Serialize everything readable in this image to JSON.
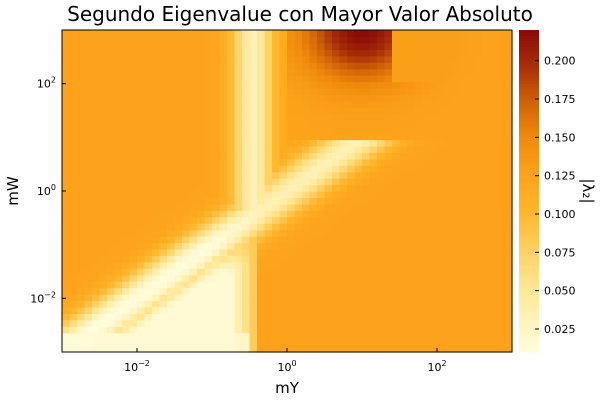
{
  "chart_data": {
    "type": "heatmap",
    "title": "Segundo Eigenvalue con Mayor Valor Absoluto",
    "xlabel": "mY",
    "ylabel": "mW",
    "colorbar_label": "|λ₂|",
    "x_scale": "log",
    "y_scale": "log",
    "xlim": [
      0.001,
      1000
    ],
    "ylim": [
      0.001,
      1000
    ],
    "x_ticks": [
      {
        "value": 0.01,
        "base": "10",
        "exp": "−2"
      },
      {
        "value": 1,
        "base": "10",
        "exp": "0"
      },
      {
        "value": 100,
        "base": "10",
        "exp": "2"
      }
    ],
    "y_ticks": [
      {
        "value": 0.01,
        "base": "10",
        "exp": "−2"
      },
      {
        "value": 1,
        "base": "10",
        "exp": "0"
      },
      {
        "value": 100,
        "base": "10",
        "exp": "2"
      }
    ],
    "color_range": [
      0.01,
      0.22
    ],
    "colorbar_ticks": [
      "0.025",
      "0.050",
      "0.075",
      "0.100",
      "0.125",
      "0.150",
      "0.175",
      "0.200"
    ],
    "colorbar_tick_values": [
      0.025,
      0.05,
      0.075,
      0.1,
      0.125,
      0.15,
      0.175,
      0.2
    ],
    "colormap": [
      "#fffcdc",
      "#fff2b8",
      "#ffe38a",
      "#ffcd5c",
      "#ffb529",
      "#fca21a",
      "#f08a0c",
      "#d06307",
      "#a82f08",
      "#8b0b06"
    ],
    "grid": {
      "nx": 60,
      "ny": 50
    },
    "regions": {
      "plateau_value": 0.125,
      "valley_center_slope_low": 1.0,
      "valley_break": [
        0.3,
        0.3
      ],
      "upper_branch_slope": 0.4,
      "lower_left_min": 0.01,
      "peak": {
        "mY": 10,
        "mW": 1000,
        "value": 0.22
      },
      "upper_right_plateau": {
        "mY_min": 10,
        "mW_min": 100,
        "value": 0.125
      }
    }
  }
}
